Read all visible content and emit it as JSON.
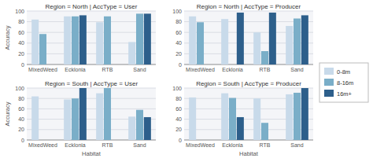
{
  "chart_data": [
    {
      "type": "bar",
      "title": "Region = North | AccType = User",
      "categories": [
        "MixedWeed",
        "Ecklonia",
        "RTB",
        "Sand"
      ],
      "series": [
        {
          "name": "0-8m",
          "color": "#c8daea",
          "values": [
            84,
            90,
            79,
            42
          ]
        },
        {
          "name": "8-16m",
          "color": "#7aaec8",
          "values": [
            57,
            90,
            90,
            95
          ]
        },
        {
          "name": "16m+",
          "color": "#2d5f8b",
          "values": [
            null,
            92,
            null,
            95
          ]
        }
      ],
      "ylabel": "Accuracy",
      "ylim": [
        0,
        100
      ],
      "yticks": [
        0,
        20,
        40,
        60,
        80,
        100
      ],
      "grid": true
    },
    {
      "type": "bar",
      "title": "Region = North | AccType = Producer",
      "categories": [
        "MixedWeed",
        "Ecklonia",
        "RTB",
        "Sand"
      ],
      "series": [
        {
          "name": "0-8m",
          "color": "#c8daea",
          "values": [
            90,
            85,
            60,
            72
          ]
        },
        {
          "name": "8-16m",
          "color": "#7aaec8",
          "values": [
            79,
            null,
            25,
            86
          ]
        },
        {
          "name": "16m+",
          "color": "#2d5f8b",
          "values": [
            null,
            97,
            97,
            92
          ]
        }
      ],
      "ylim": [
        0,
        100
      ],
      "yticks": [
        0,
        20,
        40,
        60,
        80,
        100
      ],
      "grid": true,
      "legend": "right"
    },
    {
      "type": "bar",
      "title": "Region = South | AccType = User",
      "categories": [
        "MixedWeed",
        "Ecklonia",
        "RTB",
        "Sand"
      ],
      "series": [
        {
          "name": "0-8m",
          "color": "#c8daea",
          "values": [
            84,
            78,
            90,
            45
          ]
        },
        {
          "name": "8-16m",
          "color": "#7aaec8",
          "values": [
            null,
            80,
            100,
            58
          ]
        },
        {
          "name": "16m+",
          "color": "#2d5f8b",
          "values": [
            null,
            100,
            null,
            44
          ]
        }
      ],
      "xlabel": "Habitat",
      "ylabel": "Accuracy",
      "ylim": [
        0,
        100
      ],
      "yticks": [
        0,
        20,
        40,
        60,
        80,
        100
      ],
      "grid": true
    },
    {
      "type": "bar",
      "title": "Region = South | AccType = Producer",
      "categories": [
        "MixedWeed",
        "Ecklonia",
        "RTB",
        "Sand"
      ],
      "series": [
        {
          "name": "0-8m",
          "color": "#c8daea",
          "values": [
            82,
            90,
            80,
            88
          ]
        },
        {
          "name": "8-16m",
          "color": "#7aaec8",
          "values": [
            null,
            81,
            33,
            91
          ]
        },
        {
          "name": "16m+",
          "color": "#2d5f8b",
          "values": [
            null,
            44,
            null,
            100
          ]
        }
      ],
      "xlabel": "Habitat",
      "ylim": [
        0,
        100
      ],
      "yticks": [
        0,
        20,
        40,
        60,
        80,
        100
      ],
      "grid": true
    }
  ]
}
